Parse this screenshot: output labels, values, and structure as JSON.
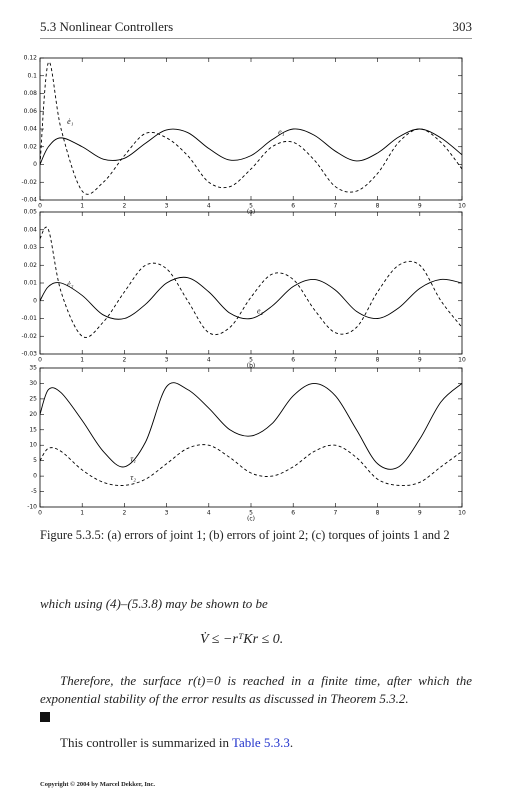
{
  "header": {
    "section": "5.3 Nonlinear Controllers",
    "page": "303"
  },
  "chart_data": [
    {
      "type": "line",
      "xlabel": "(a)",
      "x": [
        0,
        0.2,
        0.5,
        1,
        1.5,
        2,
        2.5,
        3,
        3.5,
        4,
        4.5,
        5,
        5.5,
        6,
        6.5,
        7,
        7.5,
        8,
        8.5,
        9,
        9.5,
        10
      ],
      "xlim": [
        0,
        10
      ],
      "xticks": [
        0,
        1,
        2,
        3,
        4,
        5,
        6,
        7,
        8,
        9,
        10
      ],
      "ylim": [
        -0.04,
        0.12
      ],
      "yticks": [
        -0.04,
        -0.02,
        0,
        0.02,
        0.04,
        0.06,
        0.08,
        0.1,
        0.12
      ],
      "series": [
        {
          "name": "ė₁",
          "color": "#000",
          "style": "dashed",
          "values": [
            0,
            0.115,
            0.04,
            -0.03,
            -0.02,
            0.01,
            0.035,
            0.03,
            0.01,
            -0.02,
            -0.025,
            -0.005,
            0.02,
            0.025,
            0.005,
            -0.025,
            -0.03,
            -0.01,
            0.025,
            0.04,
            0.025,
            -0.005
          ]
        },
        {
          "name": "e₁",
          "color": "#000",
          "style": "solid",
          "values": [
            0,
            0.02,
            0.03,
            0.02,
            0.006,
            0.007,
            0.024,
            0.039,
            0.036,
            0.018,
            0.005,
            0.01,
            0.028,
            0.04,
            0.033,
            0.015,
            0.004,
            0.013,
            0.031,
            0.04,
            0.03,
            0.011
          ]
        }
      ]
    },
    {
      "type": "line",
      "xlabel": "(b)",
      "x": [
        0,
        0.2,
        0.5,
        1,
        1.5,
        2,
        2.5,
        3,
        3.5,
        4,
        4.5,
        5,
        5.5,
        6,
        6.5,
        7,
        7.5,
        8,
        8.5,
        9,
        9.5,
        10
      ],
      "xlim": [
        0,
        10
      ],
      "xticks": [
        0,
        1,
        2,
        3,
        4,
        5,
        6,
        7,
        8,
        9,
        10
      ],
      "ylim": [
        -0.03,
        0.05
      ],
      "yticks": [
        -0.03,
        -0.02,
        -0.01,
        0,
        0.01,
        0.02,
        0.03,
        0.04,
        0.05
      ],
      "series": [
        {
          "name": "ė₂",
          "color": "#000",
          "style": "dashed",
          "values": [
            0.035,
            0.04,
            0.005,
            -0.02,
            -0.012,
            0.005,
            0.02,
            0.018,
            0,
            -0.018,
            -0.015,
            0.002,
            0.015,
            0.012,
            -0.005,
            -0.018,
            -0.015,
            0.005,
            0.02,
            0.02,
            0,
            -0.015
          ]
        },
        {
          "name": "e₂",
          "color": "#000",
          "style": "solid",
          "values": [
            0,
            0.008,
            0.01,
            0.003,
            -0.008,
            -0.01,
            -0.002,
            0.01,
            0.013,
            0.005,
            -0.007,
            -0.01,
            -0.003,
            0.008,
            0.012,
            0.006,
            -0.006,
            -0.01,
            -0.004,
            0.007,
            0.012,
            0.01
          ]
        }
      ]
    },
    {
      "type": "line",
      "xlabel": "(c)",
      "x": [
        0,
        0.2,
        0.5,
        1,
        1.5,
        2,
        2.5,
        3,
        3.5,
        4,
        4.5,
        5,
        5.5,
        6,
        6.5,
        7,
        7.5,
        8,
        8.5,
        9,
        9.5,
        10
      ],
      "xlim": [
        0,
        10
      ],
      "xticks": [
        0,
        1,
        2,
        3,
        4,
        5,
        6,
        7,
        8,
        9,
        10
      ],
      "ylim": [
        -10,
        35
      ],
      "yticks": [
        -10,
        -5,
        0,
        5,
        10,
        15,
        20,
        25,
        30,
        35
      ],
      "series": [
        {
          "name": "τ₁",
          "color": "#000",
          "style": "solid",
          "values": [
            20,
            28,
            27,
            18,
            8,
            3,
            11,
            29,
            28,
            22,
            15,
            13,
            17,
            26,
            30,
            26,
            15,
            4,
            3,
            12,
            24,
            30
          ]
        },
        {
          "name": "τ₂",
          "color": "#000",
          "style": "dashed",
          "values": [
            5,
            9,
            8,
            2,
            -2,
            -3,
            -1,
            4,
            9,
            10,
            6,
            1,
            0,
            3,
            8,
            10,
            6,
            -1,
            -3,
            -2,
            3,
            8
          ]
        }
      ]
    }
  ],
  "caption": "Figure 5.3.5: (a) errors of joint 1; (b) errors of joint 2; (c) torques of joints 1 and 2",
  "lead": "which using (4)–(5.3.8) may be shown to be",
  "equation": "V̇ ≤ −rᵀKr ≤ 0.",
  "paragraph": "Therefore, the surface r(t)=0 is reached in a finite time, after which the exponential stability of the error results as discussed in Theorem 5.3.2.",
  "summary": {
    "before": "This controller is summarized in ",
    "link": "Table 5.3.3",
    "after": "."
  },
  "copyright": "Copyright © 2004 by Marcel Dekker, Inc."
}
